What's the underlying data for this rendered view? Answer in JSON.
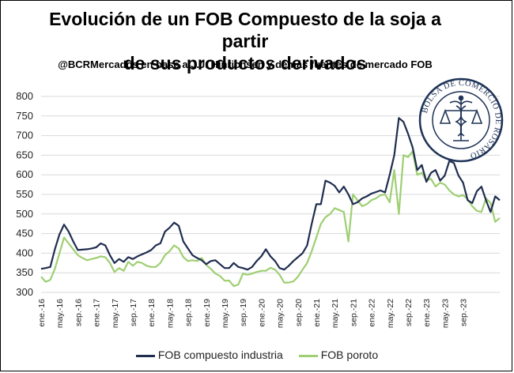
{
  "header": {
    "title_line1": "Evolución de un FOB Compuesto de la soja a partir",
    "title_line2": "de sus productos derivados",
    "subtitle": "@BCRMercados en base a J.J. Hinrichsen y demás fuentes de mercado FOB"
  },
  "logo": {
    "text": "BOLSA DE COMERCIO DE ROSARIO",
    "icon": "caduceus-scales-seal-icon",
    "color": "#1f3357"
  },
  "chart_data": {
    "type": "line",
    "title": "Evolución de un FOB Compuesto de la soja a partir de sus productos derivados",
    "ylim": [
      300,
      800
    ],
    "yticks": [
      300,
      350,
      400,
      450,
      500,
      550,
      600,
      650,
      700,
      750,
      800
    ],
    "grid": true,
    "legend_position": "bottom",
    "x_tick_labels": [
      "ene.-16",
      "may.-16",
      "sep.-16",
      "ene.-17",
      "may.-17",
      "sep.-17",
      "ene.-18",
      "may.-18",
      "sep.-18",
      "ene.-19",
      "may.-19",
      "sep.-19",
      "ene.-20",
      "may.-20",
      "sep.-20",
      "ene.-21",
      "may.-21",
      "sep.-21",
      "ene.-22",
      "may.-22",
      "sep.-22",
      "ene.-23",
      "may.-23",
      "sep.-23"
    ],
    "x_start": "2016-01",
    "series": [
      {
        "name": "FOB compuesto industria",
        "color": "#1f2d4f",
        "values": [
          360,
          362,
          365,
          410,
          448,
          473,
          455,
          430,
          408,
          409,
          410,
          412,
          415,
          425,
          420,
          395,
          375,
          385,
          378,
          390,
          385,
          392,
          397,
          402,
          408,
          420,
          425,
          455,
          465,
          478,
          470,
          430,
          412,
          395,
          388,
          382,
          372,
          380,
          382,
          372,
          362,
          362,
          375,
          365,
          362,
          358,
          365,
          380,
          392,
          410,
          392,
          380,
          362,
          358,
          368,
          380,
          390,
          400,
          420,
          475,
          525,
          525,
          585,
          580,
          572,
          555,
          570,
          550,
          525,
          530,
          540,
          545,
          552,
          556,
          560,
          555,
          600,
          650,
          745,
          735,
          705,
          670,
          612,
          625,
          582,
          605,
          612,
          585,
          598,
          635,
          630,
          598,
          580,
          535,
          528,
          558,
          570,
          535,
          505,
          545,
          535
        ]
      },
      {
        "name": "FOB poroto",
        "color": "#9ecf73",
        "values": [
          340,
          327,
          332,
          360,
          400,
          440,
          425,
          410,
          395,
          388,
          382,
          385,
          388,
          392,
          390,
          375,
          352,
          362,
          355,
          378,
          368,
          378,
          375,
          368,
          365,
          365,
          375,
          395,
          405,
          420,
          412,
          390,
          380,
          382,
          380,
          388,
          370,
          360,
          348,
          342,
          330,
          330,
          316,
          320,
          348,
          345,
          348,
          352,
          355,
          355,
          363,
          358,
          345,
          325,
          325,
          328,
          340,
          358,
          375,
          405,
          440,
          475,
          492,
          500,
          515,
          510,
          505,
          430,
          550,
          535,
          520,
          525,
          535,
          540,
          548,
          550,
          530,
          612,
          500,
          650,
          645,
          660,
          600,
          605,
          585,
          590,
          570,
          580,
          575,
          560,
          550,
          545,
          548,
          538,
          520,
          508,
          505,
          540,
          528,
          480,
          490
        ]
      }
    ]
  }
}
